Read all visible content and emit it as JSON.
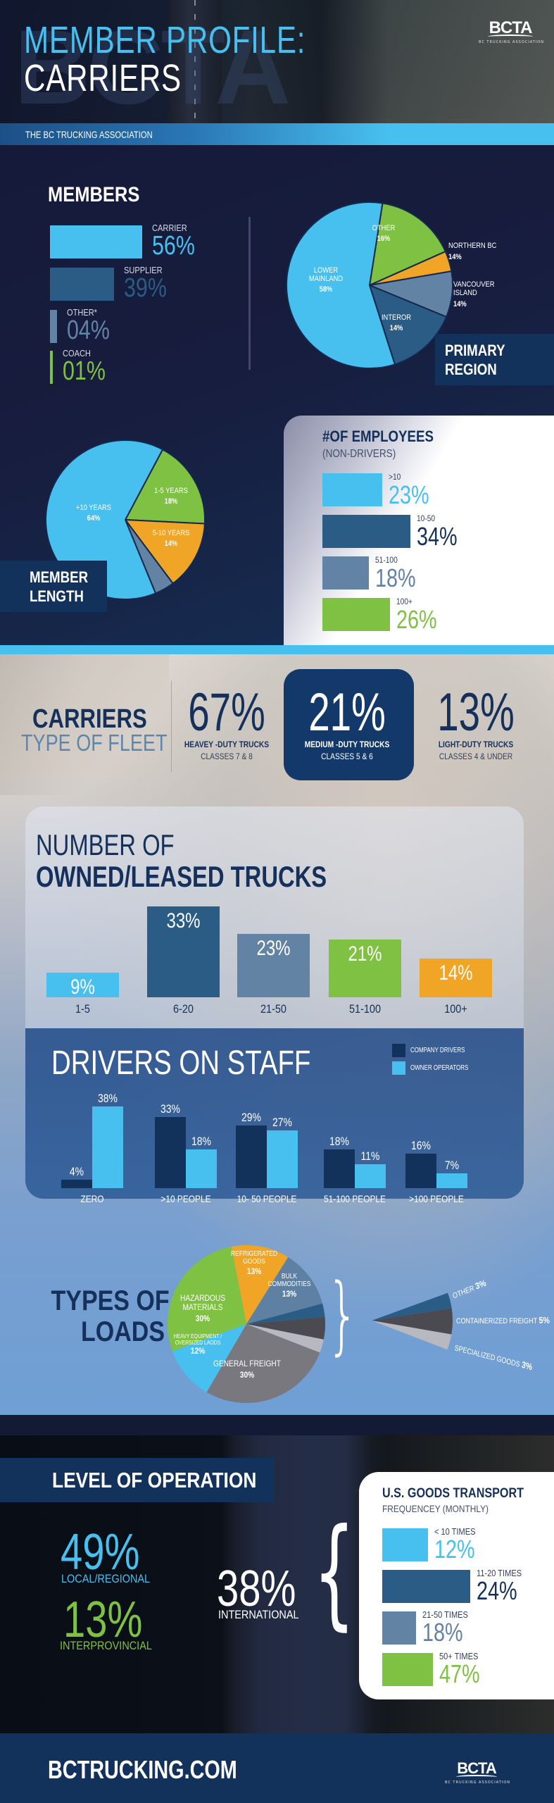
{
  "header": {
    "title_line1": "MEMBER PROFILE:",
    "title_line2": "CARRIERS",
    "ghost_text": "BCTA",
    "band_text": "THE BC TRUCKING ASSOCIATION",
    "logo_mark": "BCTA",
    "logo_sub": "BC TRUCKING ASSOCIATION"
  },
  "colors": {
    "light_blue": "#47c0ef",
    "mid_blue": "#2a5c86",
    "slate": "#6383a4",
    "green": "#7fc142",
    "orange": "#f0a526",
    "navy": "#13325b",
    "dark_gray": "#4a4a50",
    "gray": "#78787e",
    "light_gray": "#b8b9bf"
  },
  "chart_data": [
    {
      "id": "members",
      "type": "bar",
      "title": "MEMBERS",
      "orientation": "horizontal",
      "categories": [
        "CARRIER",
        "SUPPLIER",
        "OTHER*",
        "COACH"
      ],
      "values": [
        56,
        39,
        4,
        1
      ],
      "labels": [
        "56%",
        "39%",
        "04%",
        "01%"
      ],
      "colors": [
        "#47c0ef",
        "#2a5c86",
        "#6383a4",
        "#7fc142"
      ]
    },
    {
      "id": "primary_region",
      "type": "pie",
      "title": "PRIMARY REGION",
      "slices": [
        {
          "label": "OTHER",
          "value": 16,
          "text": "16%",
          "color": "#7fc142"
        },
        {
          "label": "NORTHERN BC",
          "value": 14,
          "text": "14%",
          "color": "#f0a526",
          "visual_share": 4
        },
        {
          "label": "VANCOUVER ISLAND",
          "value": 14,
          "text": "14%",
          "color": "#6383a4",
          "visual_share": 9
        },
        {
          "label": "INTEROR",
          "value": 14,
          "text": "14%",
          "color": "#2a5c86"
        },
        {
          "label": "LOWER MAINLAND",
          "value": 58,
          "text": "58%",
          "color": "#47c0ef"
        }
      ]
    },
    {
      "id": "member_length",
      "type": "pie",
      "title": "MEMBER LENGTH",
      "slices": [
        {
          "label": "1-5 YEARS",
          "value": 18,
          "text": "18%",
          "color": "#7fc142"
        },
        {
          "label": "5-10 YEARS",
          "value": 14,
          "text": "14%",
          "color": "#f0a526"
        },
        {
          "label": "",
          "value": 4,
          "text": "",
          "color": "#6383a4"
        },
        {
          "label": "+10 YEARS",
          "value": 64,
          "text": "64%",
          "color": "#47c0ef"
        }
      ]
    },
    {
      "id": "employees",
      "type": "bar",
      "title": "#OF EMPLOYEES",
      "subtitle": "(NON-DRIVERS)",
      "orientation": "horizontal",
      "categories": [
        ">10",
        "10-50",
        "51-100",
        "100+"
      ],
      "values": [
        23,
        34,
        18,
        26
      ],
      "colors": [
        "#47c0ef",
        "#2a5c86",
        "#6383a4",
        "#7fc142"
      ]
    },
    {
      "id": "fleet_type",
      "type": "table",
      "title": "CARRIERS",
      "subtitle": "TYPE OF FLEET",
      "items": [
        {
          "pct": "67%",
          "name": "HEAVEY -DUTY TRUCKS",
          "classes": "CLASSES 7 & 8"
        },
        {
          "pct": "21%",
          "name": "MEDIUM -DUTY TRUCKS",
          "classes": "CLASSES 5 & 6",
          "highlighted": true
        },
        {
          "pct": "13%",
          "name": "LIGHT-DUTY TRUCKS",
          "classes": "CLASSES 4 & UNDER"
        }
      ]
    },
    {
      "id": "owned_leased",
      "type": "bar",
      "title_line1": "NUMBER OF",
      "title_line2": "OWNED/LEASED TRUCKS",
      "categories": [
        "1-5",
        "6-20",
        "21-50",
        "51-100",
        "100+"
      ],
      "values": [
        9,
        33,
        23,
        21,
        14
      ],
      "colors": [
        "#47c0ef",
        "#2a5c86",
        "#6383a4",
        "#7fc142",
        "#f0a526"
      ]
    },
    {
      "id": "drivers_on_staff",
      "type": "bar",
      "title": "DRIVERS ON STAFF",
      "legend_position": "top-right",
      "categories": [
        "ZERO",
        ">10 PEOPLE",
        "10- 50 PEOPLE",
        "51-100 PEOPLE",
        ">100 PEOPLE"
      ],
      "series": [
        {
          "name": "COMPANY DRIVERS",
          "color": "#13325b",
          "values": [
            4,
            33,
            29,
            18,
            16
          ]
        },
        {
          "name": "OWNER OPERATORS",
          "color": "#47c0ef",
          "values": [
            38,
            18,
            27,
            11,
            7
          ]
        }
      ]
    },
    {
      "id": "types_of_loads",
      "type": "pie",
      "title_line1": "TYPES OF",
      "title_line2": "LOADS",
      "slices": [
        {
          "label": "REFRIGERATED GOODS",
          "value": 13,
          "text": "13%",
          "color": "#f0a526"
        },
        {
          "label": "BULK COMMODITIES",
          "value": 13,
          "text": "13%",
          "color": "#5d80a3"
        },
        {
          "label": "OTHER",
          "value": 3,
          "text": "3%",
          "color": "#2a5c86"
        },
        {
          "label": "CONTAINERIZED FREIGHT",
          "value": 5,
          "text": "5%",
          "color": "#4a4a50"
        },
        {
          "label": "SPECIALIZED GOODS",
          "value": 3,
          "text": "3%",
          "color": "#b8b9bf"
        },
        {
          "label": "GENERAL FREIGHT",
          "value": 30,
          "text": "30%",
          "color": "#78787e"
        },
        {
          "label": "HEAVY EQUIPMENT / OVERSIZED LAODS",
          "value": 12,
          "text": "12%",
          "color": "#47c0ef"
        },
        {
          "label": "HAZARDOUS MATERIALS",
          "value": 30,
          "text": "30%",
          "color": "#7fc142"
        }
      ]
    },
    {
      "id": "level_of_operation",
      "type": "table",
      "title": "LEVEL OF OPERATION",
      "items": [
        {
          "pct": "49%",
          "label": "LOCAL/REGIONAL"
        },
        {
          "pct": "13%",
          "label": "INTERPROVINCIAL"
        },
        {
          "pct": "38%",
          "label": "INTERNATIONAL"
        }
      ]
    },
    {
      "id": "us_goods_transport",
      "type": "bar",
      "title": "U.S. GOODS TRANSPORT",
      "subtitle": "FREQUENCEY (MONTHLY)",
      "orientation": "horizontal",
      "categories": [
        "< 10 TIMES",
        "11-20 TIMES",
        "21-50 TIMES",
        "50+ TIMES"
      ],
      "values": [
        12,
        24,
        18,
        47
      ],
      "colors": [
        "#47c0ef",
        "#2a5c86",
        "#6383a4",
        "#7fc142"
      ]
    }
  ],
  "labels": {
    "members_title": "MEMBERS",
    "region_title_1": "PRIMARY",
    "region_title_2": "REGION",
    "length_title_1": "MEMBER",
    "length_title_2": "LENGTH"
  },
  "footer": {
    "url": "BCTRUCKING.COM",
    "logo_mark": "BCTA",
    "logo_sub": "BC TRUCKING ASSOCIATION"
  }
}
